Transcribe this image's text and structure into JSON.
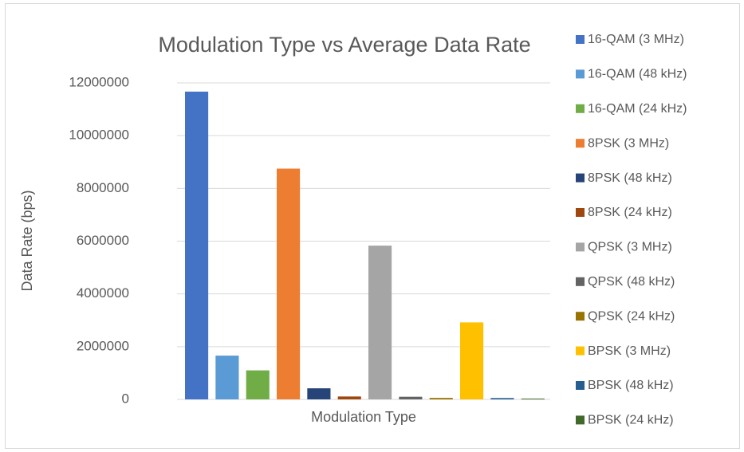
{
  "chart_data": {
    "type": "bar",
    "title": "Modulation Type vs Average Data Rate",
    "x_label": "Modulation Type",
    "y_label": "Data Rate (bps)",
    "categories": [
      null
    ],
    "series": [
      {
        "name": "16-QAM (3 MHz)",
        "color": "#4472C4",
        "values": [
          11670000
        ]
      },
      {
        "name": "16-QAM (48 kHz)",
        "color": "#5B9BD5",
        "values": [
          1660000
        ]
      },
      {
        "name": "16-QAM (24 kHz)",
        "color": "#70AD47",
        "values": [
          1100000
        ]
      },
      {
        "name": "8PSK (3 MHz)",
        "color": "#ED7D31",
        "values": [
          8750000
        ]
      },
      {
        "name": "8PSK (48 kHz)",
        "color": "#264478",
        "values": [
          420000
        ]
      },
      {
        "name": "8PSK (24 kHz)",
        "color": "#9E480E",
        "values": [
          110000
        ]
      },
      {
        "name": "QPSK (3 MHz)",
        "color": "#A5A5A5",
        "values": [
          5830000
        ]
      },
      {
        "name": "QPSK (48 kHz)",
        "color": "#636363",
        "values": [
          100000
        ]
      },
      {
        "name": "QPSK (24 kHz)",
        "color": "#997300",
        "values": [
          55000
        ]
      },
      {
        "name": "BPSK (3 MHz)",
        "color": "#FFC000",
        "values": [
          2920000
        ]
      },
      {
        "name": "BPSK (48 kHz)",
        "color": "#255E91",
        "values": [
          50000
        ]
      },
      {
        "name": "BPSK (24 kHz)",
        "color": "#43682B",
        "values": [
          30000
        ]
      }
    ],
    "ylim": [
      0,
      12000000
    ],
    "yticks": [
      0,
      2000000,
      4000000,
      6000000,
      8000000,
      10000000,
      12000000
    ],
    "grid": true,
    "legend": "right"
  }
}
